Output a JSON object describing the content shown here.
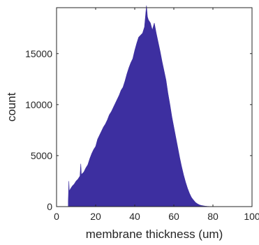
{
  "chart_data": {
    "type": "area",
    "title": "",
    "xlabel": "membrane thickness (um)",
    "ylabel": "count",
    "xlim": [
      0,
      100
    ],
    "ylim": [
      0,
      19500
    ],
    "xticks": [
      0,
      20,
      40,
      60,
      80,
      100
    ],
    "yticks": [
      0,
      5000,
      10000,
      15000
    ],
    "grid": false,
    "legend": "none",
    "fill_color": "#3d2fa0",
    "x": [
      6,
      6.3,
      6.5,
      7,
      8,
      9,
      10,
      11,
      12,
      12.4,
      12.7,
      13,
      14,
      15,
      16,
      17,
      18,
      19,
      20,
      21,
      22,
      23,
      24,
      25,
      26,
      27,
      28,
      29,
      30,
      31,
      32,
      33,
      34,
      35,
      36,
      37,
      38,
      39,
      40,
      41,
      42,
      43,
      44,
      45,
      46,
      46.5,
      47,
      48,
      49,
      50,
      51,
      52,
      53,
      54,
      55,
      56,
      57,
      58,
      59,
      60,
      61,
      62,
      63,
      64,
      65,
      66,
      67,
      68,
      69,
      70,
      71,
      72,
      73,
      74,
      75,
      76,
      77,
      78,
      79,
      80,
      82,
      84,
      86,
      88,
      90,
      92,
      95,
      100
    ],
    "values": [
      500,
      2500,
      1500,
      1700,
      2000,
      2200,
      2500,
      2700,
      3000,
      4200,
      3100,
      3200,
      3400,
      3800,
      4100,
      4700,
      5200,
      5600,
      5900,
      6600,
      7000,
      7400,
      7800,
      8100,
      8500,
      9000,
      9300,
      9700,
      10100,
      10500,
      10900,
      11400,
      11700,
      12300,
      13000,
      13600,
      14100,
      14500,
      15300,
      16000,
      16600,
      16800,
      17000,
      17600,
      19700,
      18600,
      18300,
      18000,
      17300,
      18000,
      17000,
      16100,
      15200,
      14200,
      13300,
      12400,
      11100,
      10000,
      8800,
      7800,
      6800,
      5800,
      4800,
      3900,
      3100,
      2400,
      1800,
      1300,
      900,
      650,
      420,
      280,
      180,
      120,
      80,
      50,
      30,
      20,
      15,
      10,
      5,
      3,
      2,
      1,
      0,
      0,
      0,
      0
    ]
  }
}
